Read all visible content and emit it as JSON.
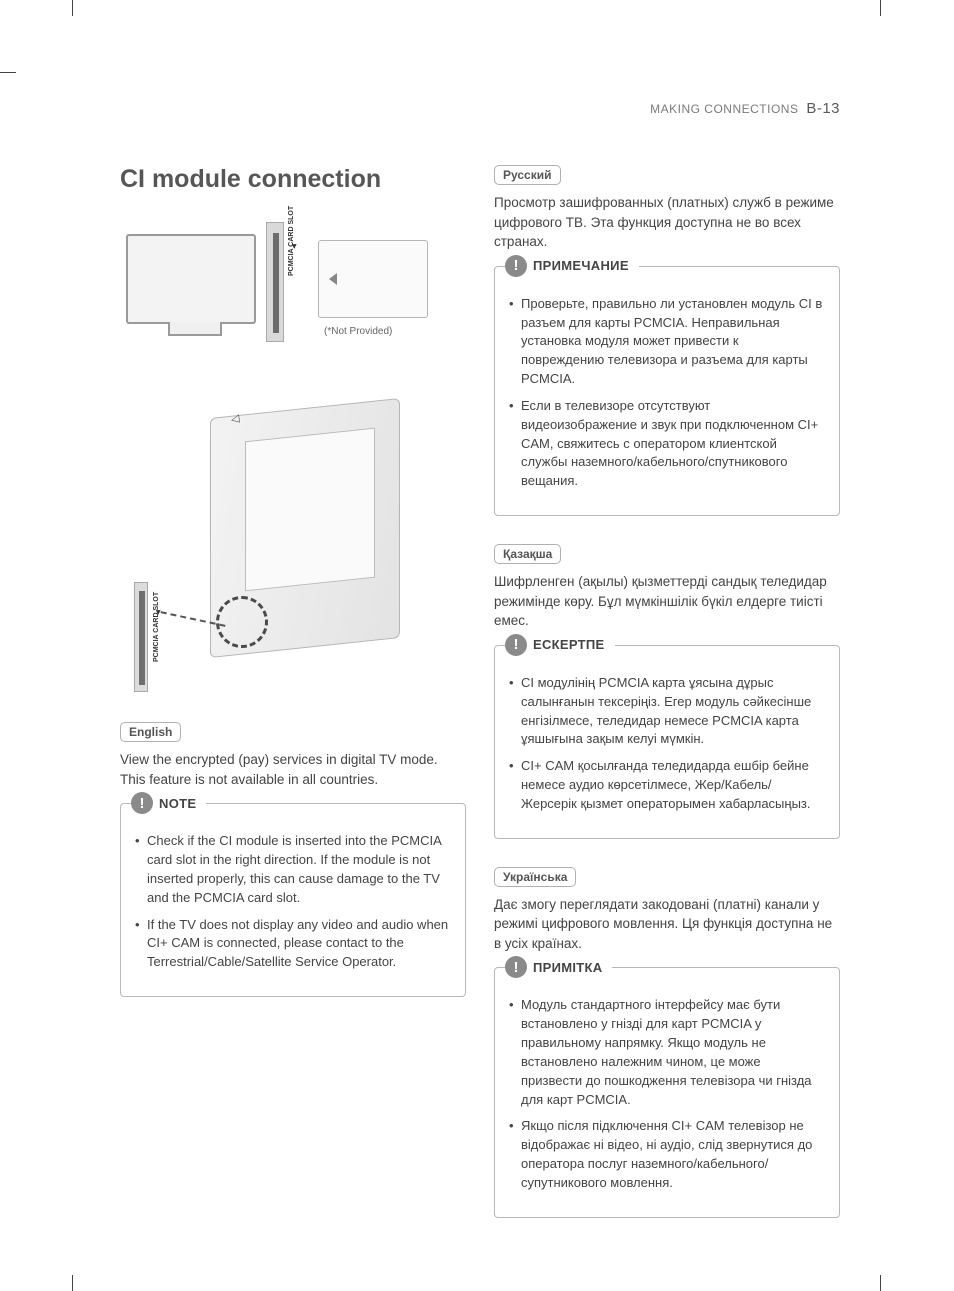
{
  "header": {
    "section": "MAKING CONNECTIONS",
    "page": "B-13"
  },
  "title": "CI module connection",
  "figure": {
    "slot_label": "PCMCIA CARD SLOT",
    "slot_arrow": "◄",
    "card_arrow": "◁",
    "not_provided": "(*Not Provided)"
  },
  "sections": [
    {
      "lang": "English",
      "intro": "View the encrypted (pay) services in digital TV mode. This feature is not available in all countries.",
      "note_title": "NOTE",
      "bullets": [
        "Check if the CI module is inserted into the PCMCIA card slot in the right direction. If the module is not inserted properly, this can cause damage to the TV and the PCMCIA card slot.",
        "If the TV does not display any video and audio when CI+ CAM is connected, please contact to the Terrestrial/Cable/Satellite Service Operator."
      ]
    },
    {
      "lang": "Русский",
      "intro": "Просмотр зашифрованных (платных) служб в режиме цифрового ТВ. Эта функция доступна не во всех странах.",
      "note_title": "ПРИМЕЧАНИЕ",
      "bullets": [
        "Проверьте, правильно ли установлен модуль CI в разъем для карты PCMCIA. Неправильная установка модуля может привести к повреждению телевизора и разъема для карты PCMCIA.",
        "Если в телевизоре отсутствуют видеоизображение и звук при подключенном CI+ CAM, свяжитесь с оператором клиентской службы наземного/кабельного/спутникового вещания."
      ]
    },
    {
      "lang": "Қазақша",
      "intro": "Шифрленген (ақылы) қызметтерді сандық теледидар режимінде көру. Бұл мүмкіншілік бүкіл елдерге тиісті емес.",
      "note_title": "ЕСКЕРТПЕ",
      "bullets": [
        "CI модулінің PCMCIA карта ұясына дұрыс салынғанын тексеріңіз. Егер модуль сәйкесінше енгізілмесе, теледидар немесе PCMCIA карта ұяшығына зақым келуі мүмкін.",
        "CI+ CAM қосылғанда теледидарда ешбір бейне немесе аудио көрсетілмесе, Жер/Кабель/Жерсерік қызмет операторымен хабарласыңыз."
      ]
    },
    {
      "lang": "Українська",
      "intro": "Дає змогу переглядати закодовані (платні) канали у режимі цифрового мовлення. Ця функція доступна не в усіх країнах.",
      "note_title": "ПРИМІТКА",
      "bullets": [
        "Модуль стандартного інтерфейсу має бути встановлено у гнізді для карт PCMCIA у правильному напрямку. Якщо модуль не встановлено належним чином, це може призвести до пошкодження телевізора чи гнізда для карт PCMCIA.",
        "Якщо після підключення CI+ CAM телевізор не відображає ні відео, ні аудіо, слід звернутися до оператора послуг наземного/кабельного/супутникового мовлення."
      ]
    }
  ],
  "style": {
    "text_color": "#444444",
    "muted_color": "#7a7a7a",
    "border_color": "#b8b8b8",
    "icon_bg": "#8a8a8a",
    "title_color": "#565656",
    "body_fontsize": 13.5,
    "title_fontsize": 25
  }
}
